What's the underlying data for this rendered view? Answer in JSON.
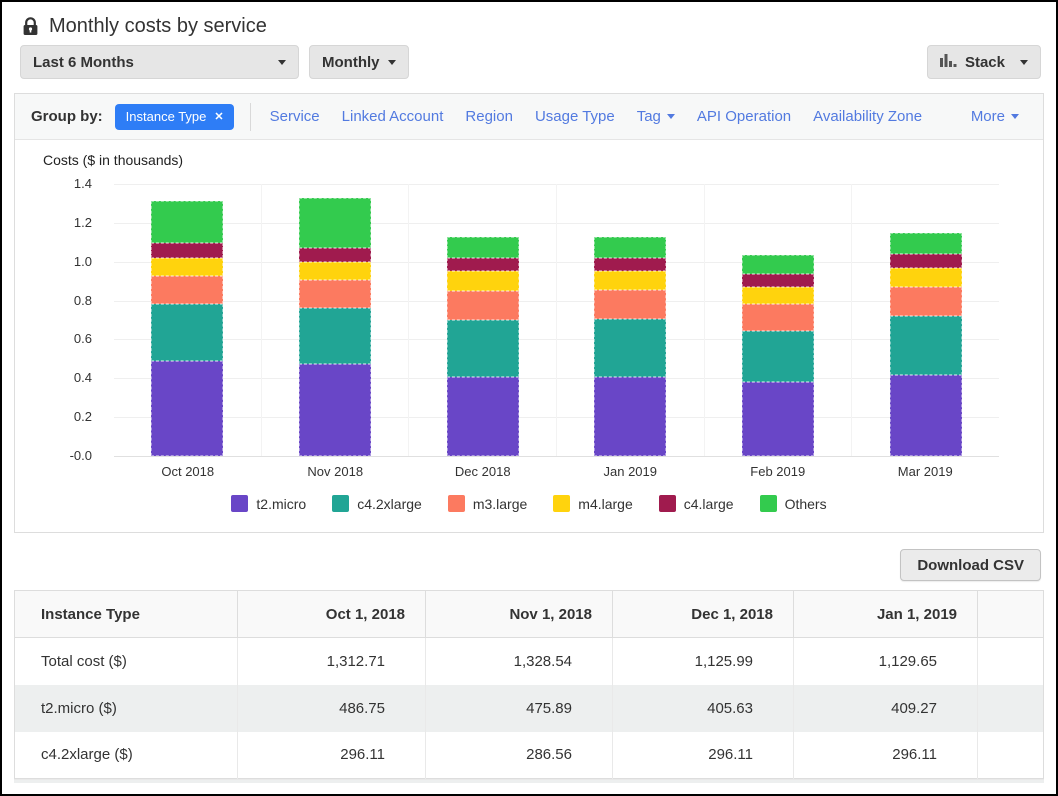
{
  "header": {
    "title": "Monthly costs by service"
  },
  "controls": {
    "time_range_label": "Last 6 Months",
    "granularity_label": "Monthly",
    "chart_style_label": "Stack"
  },
  "group_by": {
    "label": "Group by:",
    "selected_filter": {
      "label": "Instance Type",
      "close": "✕"
    },
    "links": [
      {
        "label": "Service",
        "caret": false
      },
      {
        "label": "Linked Account",
        "caret": false
      },
      {
        "label": "Region",
        "caret": false
      },
      {
        "label": "Usage Type",
        "caret": false
      },
      {
        "label": "Tag",
        "caret": true
      },
      {
        "label": "API Operation",
        "caret": false
      },
      {
        "label": "Availability Zone",
        "caret": false
      }
    ],
    "more": {
      "label": "More",
      "caret": true
    }
  },
  "chart_data": {
    "type": "bar",
    "stacked": true,
    "title": "Costs ($ in thousands)",
    "categories": [
      "Oct 2018",
      "Nov 2018",
      "Dec 2018",
      "Jan 2019",
      "Feb 2019",
      "Mar 2019"
    ],
    "series": [
      {
        "name": "t2.micro",
        "color": "#6946C7",
        "values_usd": [
          486.75,
          475.89,
          405.63,
          409.27,
          380.0,
          418.0
        ]
      },
      {
        "name": "c4.2xlarge",
        "color": "#21A595",
        "values_usd": [
          296.11,
          286.56,
          296.11,
          296.11,
          265.0,
          305.0
        ]
      },
      {
        "name": "m3.large",
        "color": "#FC7A60",
        "values_usd": [
          144.2,
          142.7,
          147.7,
          148.0,
          135.0,
          148.0
        ]
      },
      {
        "name": "m4.large",
        "color": "#FFD30D",
        "values_usd": [
          93.2,
          92.3,
          101.9,
          100.0,
          89.0,
          97.0
        ]
      },
      {
        "name": "c4.large",
        "color": "#A01B4E",
        "values_usd": [
          76.4,
          72.6,
          67.7,
          68.0,
          66.0,
          72.0
        ]
      },
      {
        "name": "Others",
        "color": "#33CB4E",
        "values_usd": [
          216.05,
          258.49,
          106.95,
          108.27,
          98.0,
          109.0
        ]
      }
    ],
    "monthly_totals_usd": [
      1312.71,
      1328.54,
      1125.99,
      1129.65,
      1033.0,
      1149.0
    ],
    "y_unit": "thousands of $",
    "ylim": [
      0,
      1.4
    ],
    "ytick_step": 0.2,
    "grid": true,
    "legend_position": "bottom"
  },
  "download_button": "Download CSV",
  "table": {
    "columns": [
      "Instance Type",
      "Oct 1, 2018",
      "Nov 1, 2018",
      "Dec 1, 2018",
      "Jan 1, 2019"
    ],
    "rows": [
      {
        "label": "Total cost ($)",
        "values": [
          "1,312.71",
          "1,328.54",
          "1,125.99",
          "1,129.65"
        ]
      },
      {
        "label": "t2.micro ($)",
        "values": [
          "486.75",
          "475.89",
          "405.63",
          "409.27"
        ]
      },
      {
        "label": "c4.2xlarge ($)",
        "values": [
          "296.11",
          "286.56",
          "296.11",
          "296.11"
        ]
      }
    ]
  },
  "colors": {
    "link_blue": "#527AE0",
    "pill_blue": "#2E7DF6",
    "button_gray": "#E6E6E6",
    "table_stripe": "#EDEFEF"
  }
}
